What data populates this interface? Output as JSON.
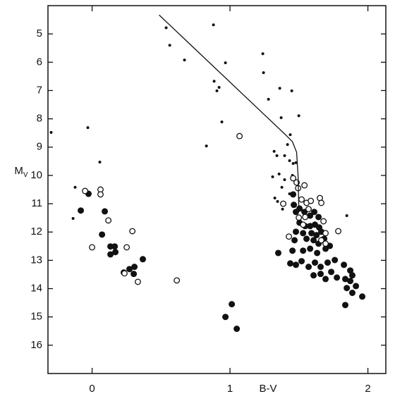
{
  "chart_data": {
    "type": "scatter",
    "xlabel": "B-V",
    "ylabel": "M",
    "ylabel_sub": "V",
    "xlim": [
      -0.32,
      2.13
    ],
    "ylim": [
      4,
      17
    ],
    "y_inverted": true,
    "xticks": [
      0,
      1,
      2
    ],
    "yticks": [
      5,
      6,
      7,
      8,
      9,
      10,
      11,
      12,
      13,
      14,
      15,
      16
    ],
    "grid": false,
    "series": [
      {
        "marker": "dot",
        "color": "#111111",
        "x": [
          -0.297,
          -0.031,
          0.056,
          -0.123,
          -0.138,
          0.537,
          0.563,
          0.67,
          0.88,
          0.967,
          0.885,
          0.921,
          0.905,
          0.941,
          0.829,
          1.238,
          1.243,
          1.279,
          1.361,
          1.448,
          1.371,
          1.437,
          1.32,
          1.34,
          1.396,
          1.417,
          1.432,
          1.458,
          1.396,
          1.376,
          1.309,
          1.325,
          1.345,
          1.381,
          1.847,
          1.478,
          1.453,
          1.356,
          1.432,
          1.499
        ],
        "values": [
          8.48,
          8.31,
          9.53,
          10.42,
          11.52,
          4.78,
          5.4,
          5.92,
          4.68,
          6.02,
          6.67,
          6.89,
          7.01,
          8.11,
          8.96,
          5.7,
          6.37,
          7.31,
          6.92,
          7.01,
          7.96,
          8.56,
          9.15,
          9.3,
          9.3,
          8.91,
          9.48,
          9.58,
          10.15,
          10.42,
          10.05,
          10.8,
          10.92,
          11.19,
          11.42,
          9.55,
          10.0,
          9.95,
          10.65,
          7.89
        ]
      },
      {
        "marker": "filled",
        "color": "#111111",
        "x": [
          -0.026,
          -0.082,
          0.092,
          0.072,
          0.133,
          0.164,
          0.133,
          0.169,
          0.271,
          0.302,
          0.307,
          0.368,
          0.23,
          0.967,
          1.013,
          1.049,
          1.458,
          1.463,
          1.478,
          1.504,
          1.54,
          1.581,
          1.611,
          1.642,
          1.504,
          1.545,
          1.581,
          1.616,
          1.647,
          1.478,
          1.53,
          1.591,
          1.627,
          1.662,
          1.468,
          1.555,
          1.606,
          1.642,
          1.683,
          1.35,
          1.453,
          1.53,
          1.581,
          1.632,
          1.693,
          1.724,
          1.437,
          1.478,
          1.519,
          1.57,
          1.616,
          1.657,
          1.708,
          1.76,
          1.826,
          1.872,
          1.606,
          1.657,
          1.693,
          1.734,
          1.775,
          1.836,
          1.887,
          1.847,
          1.887,
          1.913,
          1.959,
          1.836,
          1.872
        ],
        "values": [
          10.65,
          11.24,
          11.27,
          12.09,
          12.51,
          12.51,
          12.79,
          12.71,
          13.31,
          13.48,
          13.23,
          12.96,
          13.43,
          15.0,
          14.55,
          15.42,
          10.67,
          11.04,
          11.29,
          11.17,
          11.29,
          11.42,
          11.29,
          11.47,
          11.67,
          11.79,
          11.79,
          11.74,
          11.84,
          11.99,
          12.04,
          12.04,
          12.11,
          11.99,
          12.29,
          12.24,
          12.29,
          12.41,
          12.24,
          12.74,
          12.66,
          12.66,
          12.59,
          12.74,
          12.59,
          12.49,
          13.11,
          13.16,
          13.03,
          13.23,
          13.08,
          13.23,
          13.08,
          12.99,
          13.16,
          13.36,
          13.53,
          13.48,
          13.66,
          13.41,
          13.61,
          13.66,
          13.53,
          13.98,
          14.15,
          13.91,
          14.28,
          14.58,
          13.73
        ]
      },
      {
        "marker": "open",
        "color": "#111111",
        "x": [
          -0.051,
          0.061,
          0.061,
          0.118,
          0.0,
          0.292,
          0.251,
          0.235,
          0.332,
          0.614,
          1.069,
          1.458,
          1.483,
          1.494,
          1.54,
          1.519,
          1.386,
          1.427,
          1.555,
          1.586,
          1.57,
          1.652,
          1.662,
          1.499,
          1.545,
          1.678,
          1.662,
          1.693,
          1.785,
          1.693,
          1.53
        ],
        "values": [
          10.55,
          10.5,
          10.67,
          11.59,
          12.54,
          11.97,
          12.54,
          13.46,
          13.76,
          13.71,
          8.61,
          10.1,
          10.25,
          10.45,
          10.35,
          10.85,
          11.0,
          12.16,
          10.97,
          10.9,
          11.19,
          10.8,
          10.97,
          11.49,
          11.47,
          11.62,
          12.29,
          12.04,
          11.97,
          12.41,
          11.74
        ]
      },
      {
        "marker": "line",
        "color": "#111111",
        "x": [
          0.486,
          1.402,
          1.453,
          1.483,
          1.494,
          1.499
        ],
        "values": [
          4.33,
          8.56,
          8.81,
          9.18,
          10.05,
          11.17
        ]
      }
    ]
  }
}
